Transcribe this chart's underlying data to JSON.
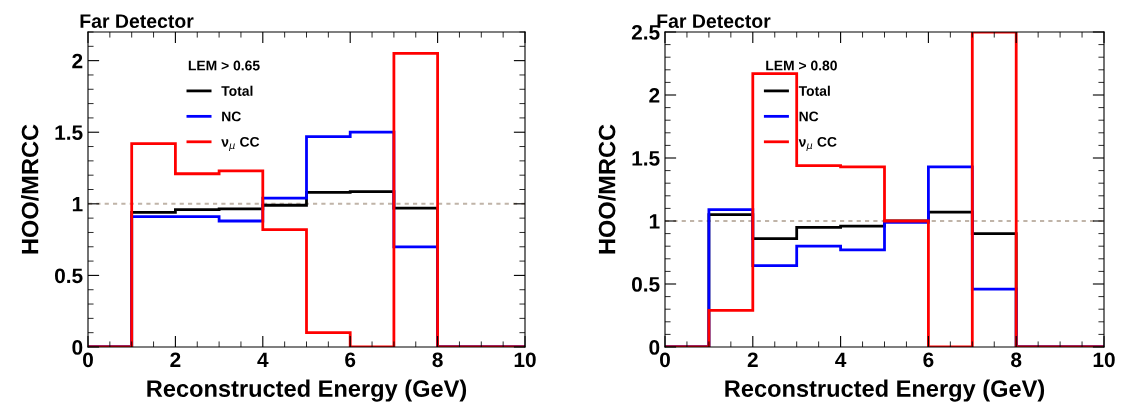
{
  "chart_data": [
    {
      "type": "histogram",
      "title": "Far Detector",
      "xlabel": "Reconstructed Energy (GeV)",
      "ylabel": "HOO/MRCC",
      "legend_title": "LEM > 0.65",
      "legend": "top left",
      "bins": [
        0,
        1,
        2,
        3,
        4,
        5,
        6,
        7,
        8,
        9,
        10
      ],
      "xlim": [
        0,
        10
      ],
      "xticks": [
        0,
        2,
        4,
        6,
        8,
        10
      ],
      "ylim": [
        0,
        2.2
      ],
      "yticks": [
        0,
        0.5,
        1,
        1.5,
        2
      ],
      "ref_lines": [
        {
          "axis": "y",
          "value": 1,
          "color": "#c0b4a8",
          "line_style": "dotted"
        }
      ],
      "series": [
        {
          "name": "Total",
          "color": "#000000",
          "values": [
            0,
            0.94,
            0.96,
            0.965,
            0.99,
            1.08,
            1.085,
            0.97,
            0,
            0
          ]
        },
        {
          "name": "NC",
          "color": "#0000ff",
          "values": [
            0,
            0.91,
            0.91,
            0.88,
            1.04,
            1.47,
            1.5,
            0.7,
            0,
            0
          ]
        },
        {
          "name": "ν$_{μ}$ CC",
          "color": "#ff0000",
          "values": [
            0,
            1.42,
            1.21,
            1.23,
            0.82,
            0.1,
            0,
            2.05,
            0,
            0
          ]
        }
      ]
    },
    {
      "type": "histogram",
      "title": "Far Detector",
      "xlabel": "Reconstructed Energy (GeV)",
      "ylabel": "HOO/MRCC",
      "legend_title": "LEM > 0.80",
      "legend": "top left",
      "bins": [
        0,
        1,
        2,
        3,
        4,
        5,
        6,
        7,
        8,
        9,
        10
      ],
      "xlim": [
        0,
        10
      ],
      "xticks": [
        0,
        2,
        4,
        6,
        8,
        10
      ],
      "ylim": [
        0,
        2.5
      ],
      "yticks": [
        0,
        0.5,
        1,
        1.5,
        2,
        2.5
      ],
      "ref_lines": [
        {
          "axis": "y",
          "value": 1,
          "color": "#c0b4a8",
          "line_style": "dotted"
        }
      ],
      "series": [
        {
          "name": "Total",
          "color": "#000000",
          "values": [
            0,
            1.05,
            0.86,
            0.95,
            0.96,
            1.0,
            1.07,
            0.9,
            0,
            0
          ]
        },
        {
          "name": "NC",
          "color": "#0000ff",
          "values": [
            0,
            1.09,
            0.645,
            0.8,
            0.77,
            0.99,
            1.43,
            0.46,
            0,
            0
          ]
        },
        {
          "name": "ν$_{μ}$ CC",
          "color": "#ff0000",
          "values": [
            0,
            0.29,
            2.17,
            1.44,
            1.43,
            1.0,
            0,
            2.5,
            0,
            0
          ]
        }
      ]
    }
  ]
}
